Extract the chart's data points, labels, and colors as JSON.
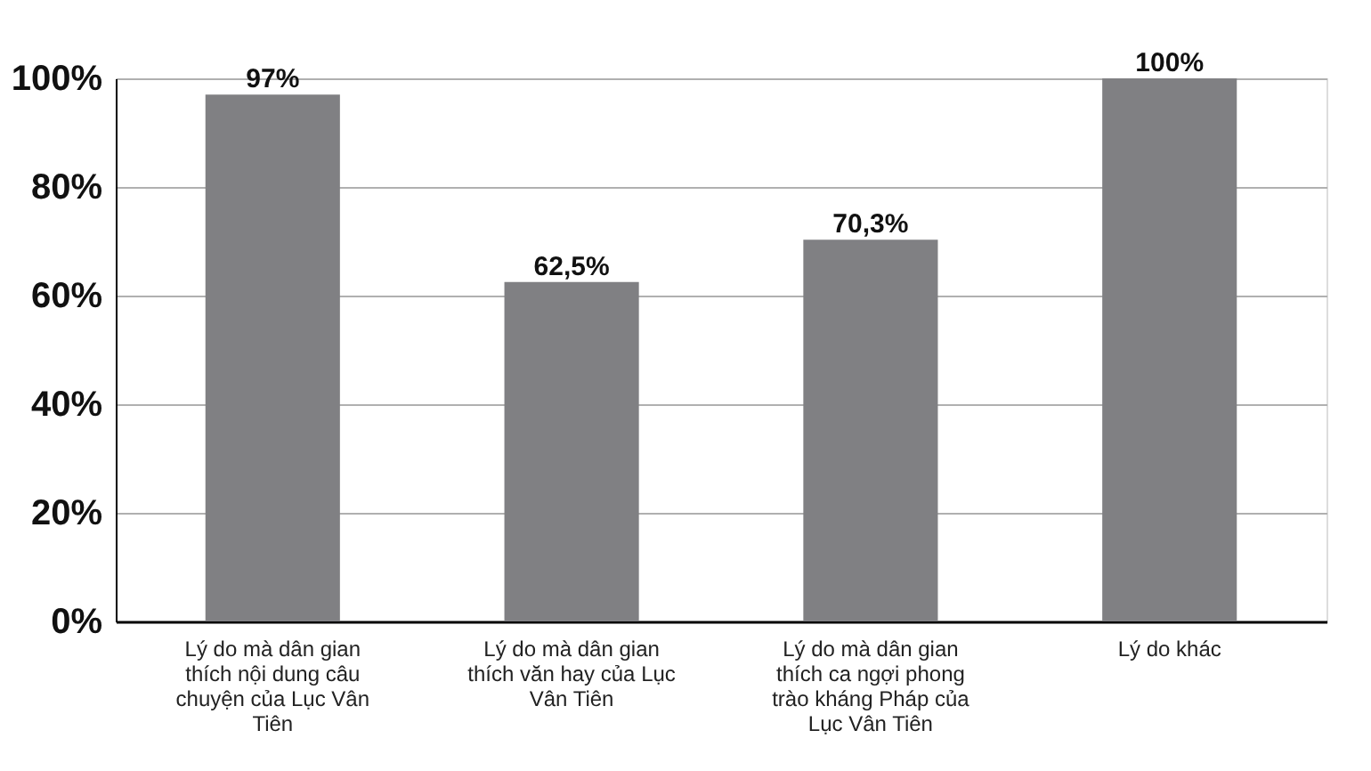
{
  "chart_data": {
    "type": "bar",
    "categories": [
      "Lý do mà dân gian thích nội dung câu chuyện của Lục Vân Tiên",
      "Lý do mà dân gian thích văn hay của Lục Vân Tiên",
      "Lý do mà dân gian thích ca ngợi phong trào kháng Pháp của Lục Vân Tiên",
      "Lý do khác"
    ],
    "values": [
      97,
      62.5,
      70.3,
      100
    ],
    "value_labels": [
      "97%",
      "62,5%",
      "70,3%",
      "100%"
    ],
    "color": "#808083",
    "ylim": [
      0,
      100
    ],
    "yticks": [
      {
        "value": 0,
        "label": "0%"
      },
      {
        "value": 20,
        "label": "20%"
      },
      {
        "value": 40,
        "label": "40%"
      },
      {
        "value": 60,
        "label": "60%"
      },
      {
        "value": 80,
        "label": "80%"
      },
      {
        "value": 100,
        "label": "100%"
      }
    ],
    "grid": "y"
  }
}
